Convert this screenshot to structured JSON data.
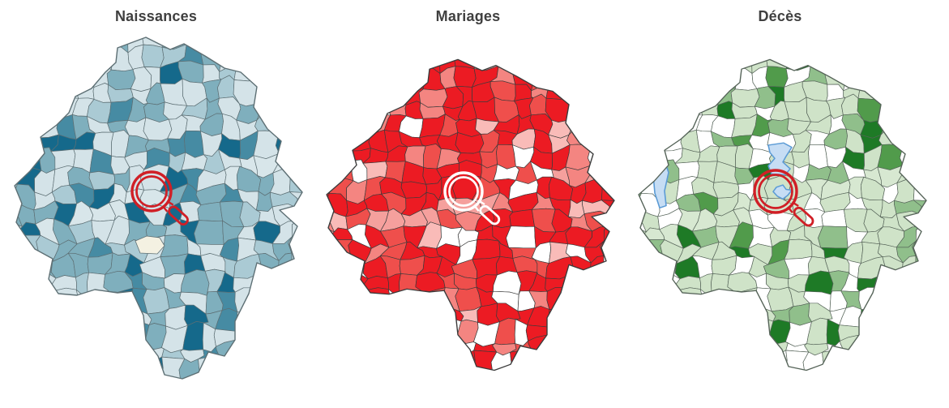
{
  "page": {
    "background": "#ffffff"
  },
  "panels": [
    {
      "id": "naissances",
      "title": "Naissances",
      "theme": "blue",
      "border_color": "#5d6f74",
      "palette": [
        {
          "label": "tres-faible",
          "color": "#d4e3e8",
          "weight": 40
        },
        {
          "label": "faible",
          "color": "#aacad4",
          "weight": 16
        },
        {
          "label": "moyen",
          "color": "#7fafbd",
          "weight": 26
        },
        {
          "label": "eleve",
          "color": "#468ba3",
          "weight": 8
        },
        {
          "label": "tres-eleve",
          "color": "#15698b",
          "weight": 10
        }
      ],
      "corridor_color": "#d8e6ea",
      "no_data_color": "#f4f1e2",
      "magnifier": {
        "color": "#d01f26",
        "radius": 24
      }
    },
    {
      "id": "mariages",
      "title": "Mariages",
      "theme": "red",
      "border_color": "#3b3b3b",
      "palette": [
        {
          "label": "tres-eleve",
          "color": "#ec1b23",
          "weight": 56
        },
        {
          "label": "eleve",
          "color": "#ef4f4c",
          "weight": 16
        },
        {
          "label": "moyen",
          "color": "#f48581",
          "weight": 11
        },
        {
          "label": "faible",
          "color": "#f9bbb8",
          "weight": 6
        },
        {
          "label": "aucun",
          "color": "#ffffff",
          "weight": 11
        }
      ],
      "corridor_color": "#f5a09d",
      "magnifier": {
        "color": "#ffffff",
        "radius": 23
      }
    },
    {
      "id": "deces",
      "title": "Décès",
      "theme": "green",
      "border_color": "#556358",
      "palette": [
        {
          "label": "faible",
          "color": "#cfe3c8",
          "weight": 50
        },
        {
          "label": "aucun",
          "color": "#ffffff",
          "weight": 29
        },
        {
          "label": "moyen",
          "color": "#90bf8b",
          "weight": 11
        },
        {
          "label": "eleve",
          "color": "#519b4b",
          "weight": 5
        },
        {
          "label": "tres-eleve",
          "color": "#1e7a26",
          "weight": 5
        }
      ],
      "corridor_color": "#d7e8d1",
      "water_fill": "#c6ddf4",
      "water_border": "#5b9bd5",
      "magnifier": {
        "color": "#d01f26",
        "radius": 26
      }
    }
  ]
}
